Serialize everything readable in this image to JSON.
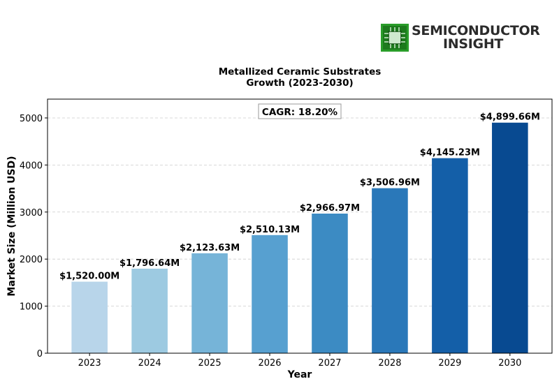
{
  "logo": {
    "line1": "SEMICONDUCTOR",
    "line2": "INSIGHT",
    "icon": "chip-icon",
    "color": "#2a9d2a"
  },
  "chart_data": {
    "type": "bar",
    "title": "Metallized Ceramic Substrates\nGrowth (2023-2030)",
    "xlabel": "Year",
    "ylabel": "Market Size (Million USD)",
    "categories": [
      "2023",
      "2024",
      "2025",
      "2026",
      "2027",
      "2028",
      "2029",
      "2030"
    ],
    "values": [
      1520.0,
      1796.64,
      2123.63,
      2510.13,
      2966.97,
      3506.96,
      4145.23,
      4899.66
    ],
    "data_labels": [
      "$1,520.00M",
      "$1,796.64M",
      "$2,123.63M",
      "$2,510.13M",
      "$2,966.97M",
      "$3,506.96M",
      "$4,145.23M",
      "$4,899.66M"
    ],
    "colors": [
      "#b8d5ea",
      "#9dcae1",
      "#76b4d8",
      "#57a0d0",
      "#3c8bc3",
      "#2a78b9",
      "#145fa8",
      "#084a91"
    ],
    "ylim": [
      0,
      5400
    ],
    "yticks": [
      0,
      1000,
      2000,
      3000,
      4000,
      5000
    ],
    "grid": "horizontal dashed",
    "annotation": "CAGR: 18.20%"
  }
}
